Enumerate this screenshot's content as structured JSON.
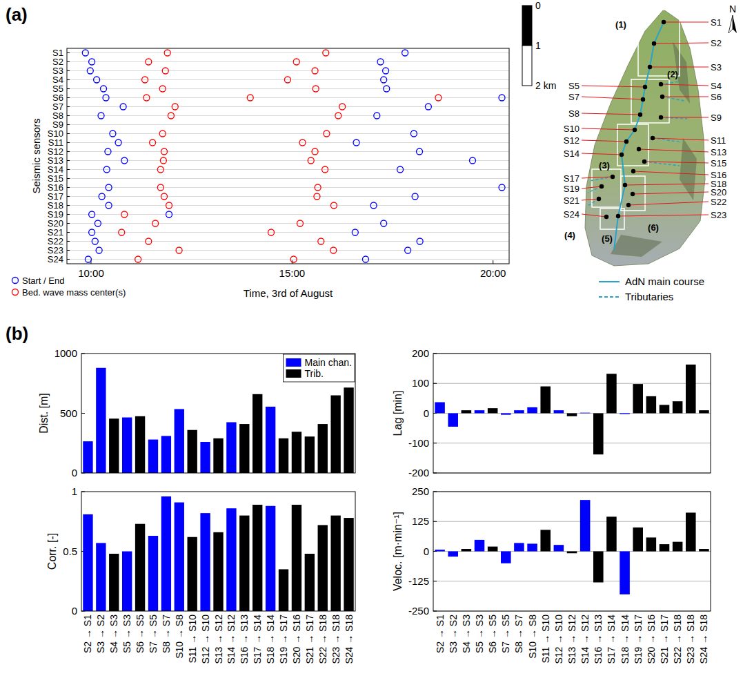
{
  "panel_labels": [
    "(a)",
    "(b)"
  ],
  "chart_data": [
    {
      "type": "scatter",
      "xlabel": "Time, 3rd of August",
      "ylabel": "Seismic sensors",
      "categories": [
        "S1",
        "S2",
        "S3",
        "S4",
        "S5",
        "S6",
        "S7",
        "S8",
        "S9",
        "S10",
        "S11",
        "S12",
        "S13",
        "S14",
        "S15",
        "S16",
        "S17",
        "S18",
        "S19",
        "S20",
        "S21",
        "S22",
        "S23",
        "S24"
      ],
      "xlim": [
        9.4,
        20.4
      ],
      "xticks": [
        {
          "value": 10,
          "label": "10:00"
        },
        {
          "value": 15,
          "label": "15:00"
        },
        {
          "value": 20,
          "label": "20:00"
        }
      ],
      "grid": true,
      "legend": "lower left",
      "series": [
        {
          "name": "Start / End",
          "color": "#0000ff",
          "marker": "circle-open",
          "x": [
            9.86,
            17.81,
            10.02,
            17.2,
            9.98,
            17.33,
            10.14,
            17.28,
            10.31,
            17.35,
            10.37,
            20.22,
            10.8,
            18.39,
            10.25,
            17.11,
            10.54,
            18.03,
            10.68,
            16.6,
            10.42,
            18.17,
            10.83,
            19.49,
            10.39,
            17.69,
            10.44,
            20.22,
            10.27,
            18.06,
            10.44,
            17.03,
            10.02,
            11.94,
            10.17,
            17.28,
            10.02,
            16.57,
            10.1,
            18.18,
            10.2,
            17.88,
            9.93,
            16.83
          ],
          "y": [
            "S1",
            "S1",
            "S2",
            "S2",
            "S3",
            "S3",
            "S4",
            "S4",
            "S5",
            "S5",
            "S6",
            "S6",
            "S7",
            "S7",
            "S8",
            "S8",
            "S10",
            "S10",
            "S11",
            "S11",
            "S12",
            "S12",
            "S13",
            "S13",
            "S14",
            "S14",
            "S16",
            "S16",
            "S17",
            "S17",
            "S18",
            "S18",
            "S19",
            "S19",
            "S20",
            "S20",
            "S21",
            "S21",
            "S22",
            "S22",
            "S23",
            "S23",
            "S24",
            "S24"
          ]
        },
        {
          "name": "Bed. wave mass center(s)",
          "color": "#ff0000",
          "marker": "circle-open",
          "x": [
            11.9,
            15.84,
            11.43,
            15.11,
            11.85,
            15.57,
            11.34,
            14.89,
            11.78,
            15.59,
            11.38,
            13.96,
            18.64,
            12.09,
            16.25,
            11.99,
            16.15,
            11.78,
            15.86,
            11.53,
            15.26,
            11.82,
            15.57,
            11.8,
            15.47,
            11.73,
            15.82,
            11.73,
            15.64,
            11.82,
            15.62,
            11.94,
            16.04,
            10.83,
            11.6,
            15.2,
            10.76,
            14.48,
            11.43,
            15.72,
            12.19,
            16.03,
            11.17,
            15.04
          ],
          "y": [
            "S1",
            "S1",
            "S2",
            "S2",
            "S3",
            "S3",
            "S4",
            "S4",
            "S5",
            "S5",
            "S6",
            "S6",
            "S6",
            "S7",
            "S7",
            "S8",
            "S8",
            "S10",
            "S10",
            "S11",
            "S11",
            "S12",
            "S12",
            "S13",
            "S13",
            "S14",
            "S14",
            "S16",
            "S16",
            "S17",
            "S17",
            "S18",
            "S18",
            "S19",
            "S20",
            "S20",
            "S21",
            "S21",
            "S22",
            "S22",
            "S23",
            "S23",
            "S24",
            "S24"
          ]
        }
      ]
    },
    {
      "type": "bar",
      "ylabel": "Dist. [m]",
      "ylim": [
        0,
        1000
      ],
      "yticks": [
        0,
        500,
        1000
      ],
      "grid": false,
      "tick_labels": "y",
      "legend": "upper right",
      "series": [
        {
          "name": "Main chan.",
          "color": "#0000ff",
          "values": [
            265,
            880,
            null,
            465,
            null,
            280,
            310,
            535,
            null,
            260,
            null,
            425,
            null,
            null,
            555,
            null,
            null,
            null,
            null,
            null,
            null
          ]
        },
        {
          "name": "Trib.",
          "color": "#000000",
          "values": [
            null,
            null,
            455,
            null,
            475,
            null,
            null,
            null,
            360,
            null,
            290,
            null,
            410,
            660,
            null,
            290,
            345,
            305,
            410,
            650,
            715
          ]
        }
      ]
    },
    {
      "type": "bar",
      "ylabel": "Lag [min]",
      "ylim": [
        -200,
        200
      ],
      "yticks": [
        -200,
        -100,
        0,
        100,
        200
      ],
      "grid": true,
      "tick_labels": "y",
      "series": [
        {
          "color": "#0000ff",
          "values": [
            37,
            -45,
            null,
            10,
            null,
            -5,
            10,
            20,
            null,
            10,
            null,
            2,
            null,
            null,
            -3,
            null,
            null,
            null,
            null,
            null,
            null
          ]
        },
        {
          "color": "#000000",
          "values": [
            null,
            null,
            10,
            null,
            17,
            null,
            null,
            null,
            90,
            null,
            -10,
            null,
            -138,
            132,
            null,
            98,
            57,
            28,
            40,
            163,
            10
          ]
        }
      ]
    },
    {
      "type": "bar",
      "ylabel": "Corr. [-]",
      "ylim": [
        0,
        1
      ],
      "yticks": [
        0,
        0.5,
        1
      ],
      "grid": false,
      "categories": [
        "S2 → S1",
        "S3 → S2",
        "S4 → S3",
        "S5 → S3",
        "S6 → S5",
        "S7 → S5",
        "S8 → S7",
        "S10 → S8",
        "S11 → S10",
        "S12 → S10",
        "S13 → S12",
        "S14 → S12",
        "S16 → S13",
        "S17 → S14",
        "S18 → S14",
        "S19 → S17",
        "S20 → S16",
        "S21 → S17",
        "S22 → S18",
        "S23 → S18",
        "S24 → S18"
      ],
      "series": [
        {
          "color": "#0000ff",
          "values": [
            0.81,
            0.57,
            null,
            0.5,
            null,
            0.63,
            0.96,
            0.91,
            null,
            0.82,
            null,
            0.86,
            null,
            null,
            0.88,
            null,
            null,
            null,
            null,
            null,
            null
          ]
        },
        {
          "color": "#000000",
          "values": [
            null,
            null,
            0.48,
            null,
            0.73,
            null,
            null,
            null,
            0.62,
            null,
            0.66,
            null,
            0.8,
            0.89,
            null,
            0.35,
            0.89,
            0.48,
            0.72,
            0.8,
            0.78
          ]
        }
      ]
    },
    {
      "type": "bar",
      "ylabel": "Veloc. [m·min⁻¹]",
      "ylim": [
        -250,
        250
      ],
      "yticks": [
        -250,
        -125,
        0,
        125,
        250
      ],
      "grid": true,
      "categories": [
        "S2 → S1",
        "S3 → S2",
        "S4 → S3",
        "S5 → S3",
        "S6 → S5",
        "S7 → S5",
        "S8 → S7",
        "S10 → S8",
        "S11 → S10",
        "S12 → S10",
        "S13 → S12",
        "S14 → S12",
        "S16 → S13",
        "S17 → S14",
        "S18 → S14",
        "S19 → S17",
        "S20 → S16",
        "S21 → S17",
        "S22 → S18",
        "S23 → S18",
        "S24 → S18"
      ],
      "series": [
        {
          "color": "#0000ff",
          "values": [
            7,
            -22,
            null,
            48,
            null,
            -50,
            35,
            32,
            null,
            27,
            null,
            215,
            null,
            null,
            -180,
            null,
            null,
            null,
            null,
            null,
            null
          ]
        },
        {
          "color": "#000000",
          "values": [
            null,
            null,
            10,
            null,
            20,
            null,
            null,
            null,
            90,
            null,
            -8,
            null,
            -130,
            145,
            null,
            100,
            58,
            30,
            40,
            162,
            10
          ]
        }
      ]
    }
  ],
  "map": {
    "sensors": [
      "S1",
      "S2",
      "S3",
      "S4",
      "S5",
      "S6",
      "S7",
      "S8",
      "S9",
      "S10",
      "S11",
      "S12",
      "S13",
      "S14",
      "S15",
      "S16",
      "S17",
      "S18",
      "S19",
      "S20",
      "S21",
      "S22",
      "S23",
      "S24"
    ],
    "regions": [
      "(1)",
      "(2)",
      "(3)",
      "(4)",
      "(5)",
      "(6)"
    ],
    "north": "N",
    "scale_bar": {
      "ticks": [
        0,
        1,
        {
          "value": 2,
          "label": "2 km"
        }
      ]
    },
    "legend": [
      {
        "name": "AdN main course",
        "color": "#29a3c6",
        "line_style": "solid"
      },
      {
        "name": "Tributaries",
        "color": "#29a3c6",
        "line_style": "dashed"
      }
    ]
  }
}
